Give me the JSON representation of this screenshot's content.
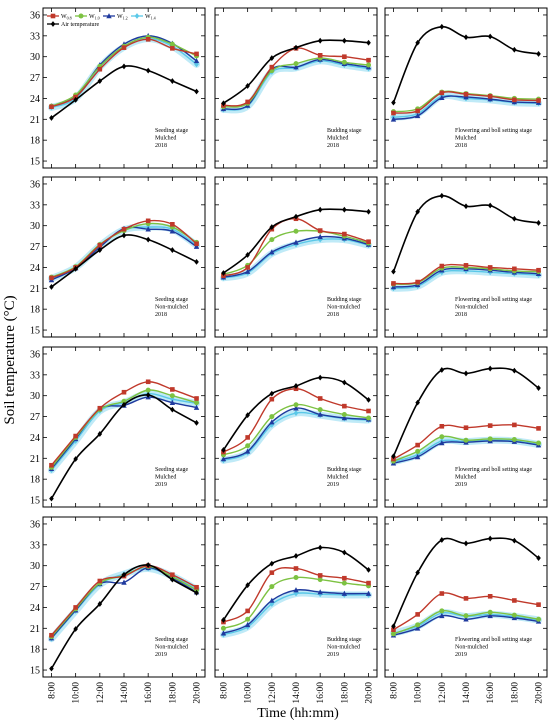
{
  "figure": {
    "ylabel": "Soil temperature (°C)",
    "xlabel": "Time (hh:mm)",
    "yticks": [
      15,
      18,
      21,
      24,
      27,
      30,
      33,
      36
    ],
    "xticks": [
      "8:00",
      "10:00",
      "12:00",
      "14:00",
      "16:00",
      "18:00",
      "20:00"
    ]
  },
  "legend": {
    "items": [
      {
        "label": "W",
        "sub": "0.8",
        "color": "#c0392b",
        "marker": "square"
      },
      {
        "label": "W",
        "sub": "1.0",
        "color": "#7dc242",
        "marker": "circle"
      },
      {
        "label": "W",
        "sub": "1.2",
        "color": "#1f3a9e",
        "marker": "triangle"
      },
      {
        "label": "W",
        "sub": "1.4",
        "color": "#5bc8e8",
        "marker": "diamond"
      },
      {
        "label": "Air temperature",
        "sub": "",
        "color": "#000000",
        "marker": "diamond"
      }
    ]
  },
  "chart_data": [
    {
      "type": "line",
      "panel": "A1",
      "label_lines": [
        "Seeding stage",
        "Mulched",
        "2018"
      ],
      "x": [
        8,
        10,
        12,
        14,
        16,
        18,
        20
      ],
      "ylim": [
        14,
        37
      ],
      "series": [
        {
          "name": "W0.8",
          "values": [
            22.8,
            24.2,
            28.2,
            31.3,
            32.5,
            31.2,
            30.4
          ]
        },
        {
          "name": "W1.0",
          "values": [
            22.9,
            24.5,
            28.6,
            31.5,
            32.8,
            31.8,
            30.1
          ]
        },
        {
          "name": "W1.2",
          "values": [
            22.9,
            24.3,
            28.8,
            31.8,
            33.0,
            31.9,
            29.4
          ]
        },
        {
          "name": "W1.4",
          "values": [
            22.7,
            24.0,
            28.5,
            31.4,
            32.6,
            31.5,
            28.9
          ]
        },
        {
          "name": "Air temperature",
          "values": [
            21.2,
            23.8,
            26.5,
            28.6,
            28.0,
            26.5,
            25.0
          ]
        }
      ]
    },
    {
      "type": "line",
      "panel": "A2",
      "label_lines": [
        "Budding stage",
        "Mulched",
        "2018"
      ],
      "x": [
        8,
        10,
        12,
        14,
        16,
        18,
        20
      ],
      "ylim": [
        14,
        37
      ],
      "series": [
        {
          "name": "W0.8",
          "values": [
            23.0,
            23.5,
            28.5,
            31.2,
            30.2,
            30.0,
            29.5
          ]
        },
        {
          "name": "W1.0",
          "values": [
            22.8,
            23.3,
            28.0,
            29.0,
            29.8,
            29.2,
            28.8
          ]
        },
        {
          "name": "W1.2",
          "values": [
            22.5,
            23.0,
            28.2,
            28.5,
            29.6,
            29.0,
            28.5
          ]
        },
        {
          "name": "W1.4",
          "values": [
            22.4,
            22.9,
            27.8,
            28.4,
            29.4,
            28.8,
            28.3
          ]
        },
        {
          "name": "Air temperature",
          "values": [
            23.3,
            25.8,
            29.8,
            31.3,
            32.3,
            32.3,
            32.0
          ]
        }
      ]
    },
    {
      "type": "line",
      "panel": "A3",
      "label_lines": [
        "Flowering and boll setting stage",
        "Mulched",
        "2018"
      ],
      "x": [
        8,
        10,
        12,
        14,
        16,
        18,
        20
      ],
      "ylim": [
        14,
        37
      ],
      "series": [
        {
          "name": "W0.8",
          "values": [
            21.9,
            22.2,
            24.8,
            24.6,
            24.3,
            23.8,
            23.7
          ]
        },
        {
          "name": "W1.0",
          "values": [
            22.1,
            22.5,
            24.9,
            24.7,
            24.4,
            24.0,
            23.9
          ]
        },
        {
          "name": "W1.2",
          "values": [
            21.0,
            21.5,
            24.1,
            24.2,
            23.9,
            23.5,
            23.4
          ]
        },
        {
          "name": "W1.4",
          "values": [
            21.3,
            21.8,
            24.3,
            24.0,
            23.8,
            23.4,
            23.3
          ]
        },
        {
          "name": "Air temperature",
          "values": [
            23.4,
            32.0,
            34.3,
            32.8,
            32.9,
            31.0,
            30.4
          ]
        }
      ]
    },
    {
      "type": "line",
      "panel": "B1",
      "label_lines": [
        "Seeding stage",
        "Non-mulched",
        "2018"
      ],
      "x": [
        8,
        10,
        12,
        14,
        16,
        18,
        20
      ],
      "ylim": [
        14,
        37
      ],
      "series": [
        {
          "name": "W0.8",
          "values": [
            22.5,
            24.0,
            27.2,
            29.5,
            30.7,
            30.2,
            27.4
          ]
        },
        {
          "name": "W1.0",
          "values": [
            22.6,
            24.1,
            27.3,
            29.3,
            30.3,
            29.8,
            27.6
          ]
        },
        {
          "name": "W1.2",
          "values": [
            22.2,
            23.9,
            26.9,
            29.6,
            29.5,
            29.2,
            27.0
          ]
        },
        {
          "name": "W1.4",
          "values": [
            22.4,
            24.0,
            27.1,
            29.4,
            29.8,
            29.5,
            27.2
          ]
        },
        {
          "name": "Air temperature",
          "values": [
            21.2,
            23.8,
            26.5,
            28.6,
            28.0,
            26.5,
            24.8
          ]
        }
      ]
    },
    {
      "type": "line",
      "panel": "B2",
      "label_lines": [
        "Budding stage",
        "Non-mulched",
        "2018"
      ],
      "x": [
        8,
        10,
        12,
        14,
        16,
        18,
        20
      ],
      "ylim": [
        14,
        37
      ],
      "series": [
        {
          "name": "W0.8",
          "values": [
            22.8,
            24.0,
            29.5,
            31.0,
            29.3,
            28.8,
            27.7
          ]
        },
        {
          "name": "W1.0",
          "values": [
            23.0,
            24.3,
            28.0,
            29.2,
            29.2,
            28.5,
            27.5
          ]
        },
        {
          "name": "W1.2",
          "values": [
            22.6,
            23.4,
            26.2,
            27.6,
            28.4,
            28.2,
            27.3
          ]
        },
        {
          "name": "W1.4",
          "values": [
            22.5,
            23.2,
            26.0,
            27.3,
            28.0,
            28.0,
            27.2
          ]
        },
        {
          "name": "Air temperature",
          "values": [
            23.2,
            25.8,
            29.8,
            31.3,
            32.3,
            32.3,
            32.0
          ]
        }
      ]
    },
    {
      "type": "line",
      "panel": "B3",
      "label_lines": [
        "Flowering and boll setting stage",
        "Non-mulched",
        "2018"
      ],
      "x": [
        8,
        10,
        12,
        14,
        16,
        18,
        20
      ],
      "ylim": [
        14,
        37
      ],
      "series": [
        {
          "name": "W0.8",
          "values": [
            21.7,
            21.9,
            24.2,
            24.3,
            24.0,
            23.8,
            23.6
          ]
        },
        {
          "name": "W1.0",
          "values": [
            21.6,
            21.8,
            23.9,
            24.0,
            23.8,
            23.5,
            23.4
          ]
        },
        {
          "name": "W1.2",
          "values": [
            21.2,
            21.5,
            23.6,
            23.8,
            23.6,
            23.3,
            23.1
          ]
        },
        {
          "name": "W1.4",
          "values": [
            21.0,
            21.3,
            23.3,
            23.5,
            23.3,
            23.1,
            22.9
          ]
        },
        {
          "name": "Air temperature",
          "values": [
            23.4,
            32.0,
            34.3,
            32.8,
            32.9,
            31.0,
            30.4
          ]
        }
      ]
    },
    {
      "type": "line",
      "panel": "C1",
      "label_lines": [
        "Seeding stage",
        "Mulched",
        "2019"
      ],
      "x": [
        8,
        10,
        12,
        14,
        16,
        18,
        20
      ],
      "ylim": [
        14,
        37
      ],
      "series": [
        {
          "name": "W0.8",
          "values": [
            20.0,
            24.2,
            28.2,
            30.5,
            32.0,
            30.9,
            29.6
          ]
        },
        {
          "name": "W1.0",
          "values": [
            19.7,
            24.0,
            28.0,
            29.2,
            30.8,
            30.0,
            29.0
          ]
        },
        {
          "name": "W1.2",
          "values": [
            19.5,
            23.8,
            28.1,
            28.6,
            29.8,
            29.0,
            28.3
          ]
        },
        {
          "name": "W1.4",
          "values": [
            19.3,
            23.5,
            27.8,
            29.0,
            30.3,
            29.5,
            28.9
          ]
        },
        {
          "name": "Air temperature",
          "values": [
            15.2,
            20.9,
            24.5,
            28.7,
            30.1,
            28.0,
            26.1
          ]
        }
      ]
    },
    {
      "type": "line",
      "panel": "C2",
      "label_lines": [
        "Budding stage",
        "Mulched",
        "2019"
      ],
      "x": [
        8,
        10,
        12,
        14,
        16,
        18,
        20
      ],
      "ylim": [
        14,
        37
      ],
      "series": [
        {
          "name": "W0.8",
          "values": [
            21.9,
            24.0,
            29.5,
            31.0,
            29.6,
            28.5,
            27.8
          ]
        },
        {
          "name": "W1.0",
          "values": [
            21.5,
            22.8,
            27.0,
            28.7,
            28.0,
            27.3,
            26.8
          ]
        },
        {
          "name": "W1.2",
          "values": [
            20.9,
            22.0,
            26.2,
            28.2,
            27.3,
            26.8,
            26.6
          ]
        },
        {
          "name": "W1.4",
          "values": [
            20.7,
            21.8,
            25.8,
            27.5,
            27.2,
            26.7,
            26.5
          ]
        },
        {
          "name": "Air temperature",
          "values": [
            22.2,
            27.2,
            30.3,
            31.4,
            32.6,
            31.9,
            29.4
          ]
        }
      ]
    },
    {
      "type": "line",
      "panel": "C3",
      "label_lines": [
        "Flowering and boll setting stage",
        "Mulched",
        "2019"
      ],
      "x": [
        8,
        10,
        12,
        14,
        16,
        18,
        20
      ],
      "ylim": [
        14,
        37
      ],
      "series": [
        {
          "name": "W0.8",
          "values": [
            20.9,
            22.9,
            25.6,
            25.4,
            25.7,
            25.8,
            25.3
          ]
        },
        {
          "name": "W1.0",
          "values": [
            20.6,
            22.0,
            24.1,
            23.6,
            23.8,
            23.7,
            23.2
          ]
        },
        {
          "name": "W1.2",
          "values": [
            20.3,
            21.2,
            23.2,
            23.3,
            23.5,
            23.4,
            22.9
          ]
        },
        {
          "name": "W1.4",
          "values": [
            20.5,
            21.5,
            23.5,
            23.4,
            23.6,
            23.5,
            23.0
          ]
        },
        {
          "name": "Air temperature",
          "values": [
            21.3,
            29.0,
            33.7,
            33.2,
            33.9,
            33.6,
            31.1
          ]
        }
      ]
    },
    {
      "type": "line",
      "panel": "D1",
      "label_lines": [
        "Seeding stage",
        "Non-mulched",
        "2019"
      ],
      "x": [
        8,
        10,
        12,
        14,
        16,
        18,
        20
      ],
      "ylim": [
        14,
        37
      ],
      "series": [
        {
          "name": "W0.8",
          "values": [
            20.0,
            24.0,
            27.8,
            28.5,
            30.0,
            28.7,
            26.9
          ]
        },
        {
          "name": "W1.0",
          "values": [
            19.8,
            23.8,
            27.5,
            28.6,
            29.9,
            28.4,
            26.5
          ]
        },
        {
          "name": "W1.2",
          "values": [
            19.6,
            23.6,
            27.4,
            27.6,
            29.7,
            28.2,
            26.2
          ]
        },
        {
          "name": "W1.4",
          "values": [
            19.5,
            23.5,
            27.3,
            28.8,
            29.6,
            28.5,
            26.6
          ]
        },
        {
          "name": "Air temperature",
          "values": [
            15.2,
            20.9,
            24.5,
            28.7,
            30.1,
            28.0,
            26.1
          ]
        }
      ]
    },
    {
      "type": "line",
      "panel": "D2",
      "label_lines": [
        "Budding stage",
        "Non-mulched",
        "2019"
      ],
      "x": [
        8,
        10,
        12,
        14,
        16,
        18,
        20
      ],
      "ylim": [
        14,
        37
      ],
      "series": [
        {
          "name": "W0.8",
          "values": [
            21.9,
            23.5,
            29.0,
            29.6,
            28.6,
            28.2,
            27.5
          ]
        },
        {
          "name": "W1.0",
          "values": [
            21.0,
            22.3,
            27.0,
            28.3,
            28.0,
            27.5,
            27.1
          ]
        },
        {
          "name": "W1.2",
          "values": [
            20.3,
            21.5,
            25.0,
            26.5,
            26.2,
            26.0,
            26.0
          ]
        },
        {
          "name": "W1.4",
          "values": [
            20.1,
            21.2,
            24.5,
            26.0,
            25.9,
            25.8,
            25.8
          ]
        },
        {
          "name": "Air temperature",
          "values": [
            22.2,
            27.2,
            30.3,
            31.4,
            32.6,
            31.9,
            29.4
          ]
        }
      ]
    },
    {
      "type": "line",
      "panel": "D3",
      "label_lines": [
        "Flowering and boll setting stage",
        "Non-mulched",
        "2019"
      ],
      "x": [
        8,
        10,
        12,
        14,
        16,
        18,
        20
      ],
      "ylim": [
        14,
        37
      ],
      "series": [
        {
          "name": "W0.8",
          "values": [
            20.8,
            23.0,
            26.0,
            25.3,
            25.6,
            25.0,
            24.4
          ]
        },
        {
          "name": "W1.0",
          "values": [
            20.2,
            21.5,
            23.5,
            22.8,
            23.3,
            22.9,
            22.3
          ]
        },
        {
          "name": "W1.2",
          "values": [
            20.0,
            21.0,
            22.8,
            22.3,
            22.8,
            22.5,
            22.0
          ]
        },
        {
          "name": "W1.4",
          "values": [
            20.3,
            21.3,
            23.2,
            22.7,
            23.0,
            22.7,
            22.2
          ]
        },
        {
          "name": "Air temperature",
          "values": [
            21.3,
            29.0,
            33.7,
            33.2,
            33.9,
            33.6,
            31.1
          ]
        }
      ]
    }
  ]
}
